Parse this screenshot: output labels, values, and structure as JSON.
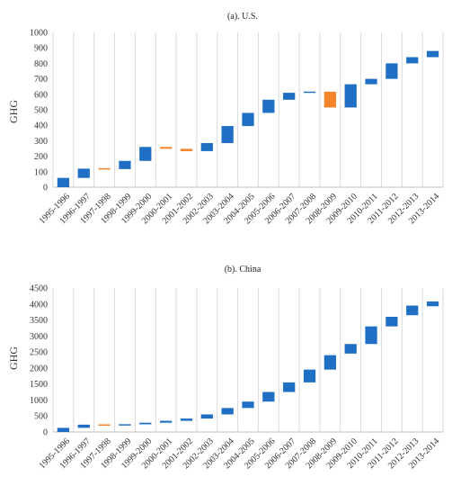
{
  "chart_data": [
    {
      "type": "waterfall",
      "title": "(a). U.S.",
      "ylabel": "GHG",
      "xlabel": "",
      "ylim": [
        0,
        1000
      ],
      "yticks": [
        0,
        100,
        200,
        300,
        400,
        500,
        600,
        700,
        800,
        900,
        1000
      ],
      "grid": "vertical",
      "legend": "none",
      "increase_color": "#1f6fc5",
      "decrease_color": "#f5842a",
      "categories": [
        "1995-1996",
        "1996-1997",
        "1997-1998",
        "1998-1999",
        "1999-2000",
        "2000-2001",
        "2001-2002",
        "2002-2003",
        "2003-2004",
        "2004-2005",
        "2005-2006",
        "2006-2007",
        "2007-2008",
        "2008-2009",
        "2009-2010",
        "2010-2011",
        "2011-2012",
        "2012-2013",
        "2013-2014"
      ],
      "start": [
        0,
        60,
        120,
        117,
        170,
        260,
        248,
        233,
        285,
        395,
        480,
        565,
        610,
        617,
        515,
        665,
        700,
        800,
        840
      ],
      "end": [
        60,
        120,
        117,
        170,
        260,
        248,
        233,
        285,
        395,
        480,
        565,
        610,
        617,
        515,
        665,
        700,
        800,
        840,
        880
      ]
    },
    {
      "type": "waterfall",
      "title": "(b). China",
      "ylabel": "GHG",
      "xlabel": "",
      "ylim": [
        0,
        4500
      ],
      "yticks": [
        0,
        500,
        1000,
        1500,
        2000,
        2500,
        3000,
        3500,
        4000,
        4500
      ],
      "grid": "vertical",
      "legend": "none",
      "increase_color": "#1f6fc5",
      "decrease_color": "#f5842a",
      "categories": [
        "1995-1996",
        "1996-1997",
        "1997-1998",
        "1998-1999",
        "1999-2000",
        "2000-2001",
        "2001-2002",
        "2002-2003",
        "2003-2004",
        "2004-2005",
        "2005-2006",
        "2006-2007",
        "2007-2008",
        "2008-2009",
        "2009-2010",
        "2010-2011",
        "2011-2012",
        "2012-2013",
        "2013-2014"
      ],
      "start": [
        0,
        130,
        230,
        205,
        240,
        290,
        350,
        420,
        550,
        750,
        950,
        1250,
        1550,
        1950,
        2450,
        2750,
        3300,
        3650,
        3930
      ],
      "end": [
        130,
        230,
        205,
        240,
        290,
        350,
        420,
        550,
        750,
        950,
        1250,
        1550,
        1950,
        2400,
        2750,
        3300,
        3600,
        3950,
        4080
      ]
    }
  ]
}
